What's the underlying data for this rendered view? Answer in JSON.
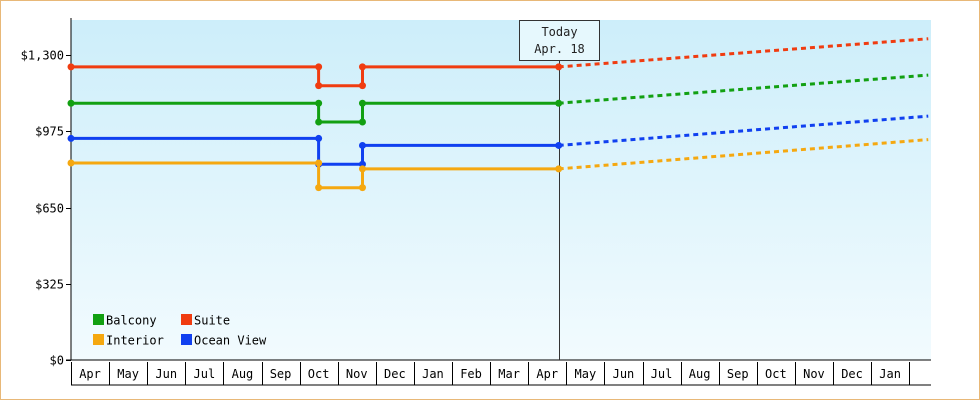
{
  "chart_data": {
    "type": "line",
    "title": "",
    "xlabel": "",
    "ylabel": "",
    "ylim": [
      0,
      1450
    ],
    "y_ticks": [
      {
        "value": 0,
        "label": "$0"
      },
      {
        "value": 325,
        "label": "$325"
      },
      {
        "value": 650,
        "label": "$650"
      },
      {
        "value": 975,
        "label": "$975"
      },
      {
        "value": 1300,
        "label": "$1,300"
      }
    ],
    "x_labels": [
      "Apr",
      "May",
      "Jun",
      "Jul",
      "Aug",
      "Sep",
      "Oct",
      "Nov",
      "Dec",
      "Jan",
      "Feb",
      "Mar",
      "Apr",
      "May",
      "Jun",
      "Jul",
      "Aug",
      "Sep",
      "Oct",
      "Nov",
      "Dec",
      "Jan"
    ],
    "today": {
      "line1": "Today",
      "line2": "Apr. 18",
      "x": 12.8
    },
    "projection_end_x": 22.5,
    "legend_position": "bottom-left",
    "grid": false,
    "colors": {
      "background_top": "#cdeefa",
      "background_bottom": "#f2fbfe",
      "axis": "#000000",
      "frame": "#e8b878"
    },
    "series": [
      {
        "name": "Suite",
        "color": "#f03c10",
        "points": [
          [
            0,
            1250
          ],
          [
            6.5,
            1250
          ],
          [
            6.5,
            1170
          ],
          [
            7.65,
            1170
          ],
          [
            7.65,
            1250
          ],
          [
            12.8,
            1250
          ]
        ],
        "projection_end": 1370
      },
      {
        "name": "Balcony",
        "color": "#12a012",
        "points": [
          [
            0,
            1095
          ],
          [
            6.5,
            1095
          ],
          [
            6.5,
            1015
          ],
          [
            7.65,
            1015
          ],
          [
            7.65,
            1095
          ],
          [
            12.8,
            1095
          ]
        ],
        "projection_end": 1215
      },
      {
        "name": "Ocean View",
        "color": "#1040f0",
        "points": [
          [
            0,
            945
          ],
          [
            6.5,
            945
          ],
          [
            6.5,
            835
          ],
          [
            7.65,
            835
          ],
          [
            7.65,
            915
          ],
          [
            12.8,
            915
          ]
        ],
        "projection_end": 1040
      },
      {
        "name": "Interior",
        "color": "#f5a810",
        "points": [
          [
            0,
            840
          ],
          [
            6.5,
            840
          ],
          [
            6.5,
            735
          ],
          [
            7.65,
            735
          ],
          [
            7.65,
            815
          ],
          [
            12.8,
            815
          ]
        ],
        "projection_end": 940
      }
    ],
    "legend": [
      {
        "series": "Balcony",
        "row": 0,
        "col": 0
      },
      {
        "series": "Suite",
        "row": 0,
        "col": 1
      },
      {
        "series": "Interior",
        "row": 1,
        "col": 0
      },
      {
        "series": "Ocean View",
        "row": 1,
        "col": 1
      }
    ]
  }
}
